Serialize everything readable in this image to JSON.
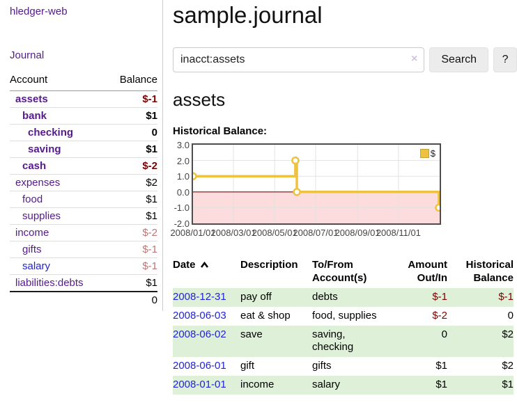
{
  "app": {
    "title": "hledger-web"
  },
  "sidebar": {
    "journal_label": "Journal",
    "accounts": {
      "header_account": "Account",
      "header_balance": "Balance",
      "rows": [
        {
          "name": "assets",
          "balance": "$-1",
          "level": 1,
          "bold": true,
          "balance_style": "neg-strong",
          "link": "purple"
        },
        {
          "name": "bank",
          "balance": "$1",
          "level": 2,
          "bold": true,
          "balance_style": "normal",
          "link": "purple"
        },
        {
          "name": "checking",
          "balance": "0",
          "level": 3,
          "bold": true,
          "balance_style": "normal",
          "link": "purple"
        },
        {
          "name": "saving",
          "balance": "$1",
          "level": 3,
          "bold": true,
          "balance_style": "normal",
          "link": "purple"
        },
        {
          "name": "cash",
          "balance": "$-2",
          "level": 2,
          "bold": true,
          "balance_style": "neg-strong",
          "link": "purple"
        },
        {
          "name": "expenses",
          "balance": "$2",
          "level": 1,
          "bold": false,
          "balance_style": "normal",
          "link": "purple"
        },
        {
          "name": "food",
          "balance": "$1",
          "level": 2,
          "bold": false,
          "balance_style": "normal",
          "link": "purple"
        },
        {
          "name": "supplies",
          "balance": "$1",
          "level": 2,
          "bold": false,
          "balance_style": "normal",
          "link": "purple"
        },
        {
          "name": "income",
          "balance": "$-2",
          "level": 1,
          "bold": false,
          "balance_style": "neg-soft",
          "link": "purple"
        },
        {
          "name": "gifts",
          "balance": "$-1",
          "level": 2,
          "bold": false,
          "balance_style": "neg-soft",
          "link": "purple"
        },
        {
          "name": "salary",
          "balance": "$-1",
          "level": 2,
          "bold": false,
          "balance_style": "neg-soft",
          "link": "blue"
        },
        {
          "name": "liabilities:debts",
          "balance": "$1",
          "level": 1,
          "bold": false,
          "balance_style": "normal",
          "link": "purple"
        }
      ],
      "total": "0"
    }
  },
  "main": {
    "title": "sample.journal",
    "search": {
      "value": "inacct:assets",
      "clear_icon": "×",
      "button_label": "Search",
      "help_label": "?"
    },
    "account_heading": "assets",
    "chart_heading": "Historical Balance:"
  },
  "chart_data": {
    "type": "line",
    "title": "Historical Balance:",
    "ylim": [
      -2,
      3
    ],
    "yticks": [
      {
        "v": 3,
        "label": "3.0"
      },
      {
        "v": 2,
        "label": "2.0"
      },
      {
        "v": 1,
        "label": "1.0"
      },
      {
        "v": 0,
        "label": "0.0"
      },
      {
        "v": -1,
        "label": "-1.0"
      },
      {
        "v": -2,
        "label": "-2.0"
      }
    ],
    "xticks": [
      {
        "pos": 0.0,
        "label": "2008/01/01"
      },
      {
        "pos": 0.164,
        "label": "2008/03/01"
      },
      {
        "pos": 0.331,
        "label": "2008/05/01"
      },
      {
        "pos": 0.497,
        "label": "2008/07/01"
      },
      {
        "pos": 0.667,
        "label": "2008/09/01"
      },
      {
        "pos": 0.833,
        "label": "2008/11/01"
      }
    ],
    "series": [
      {
        "name": "$",
        "color": "#edc240",
        "step": true,
        "points": [
          {
            "x": 0.0,
            "y": 1
          },
          {
            "x": 0.415,
            "y": 1
          },
          {
            "x": 0.415,
            "y": 2
          },
          {
            "x": 0.421,
            "y": 2
          },
          {
            "x": 0.421,
            "y": 0
          },
          {
            "x": 0.997,
            "y": 0
          },
          {
            "x": 0.997,
            "y": -1
          }
        ],
        "markers": [
          {
            "x": 0.0,
            "y": 1
          },
          {
            "x": 0.415,
            "y": 2
          },
          {
            "x": 0.421,
            "y": 0
          },
          {
            "x": 0.997,
            "y": -1
          }
        ]
      }
    ],
    "grid": true,
    "legend_position": "top-right",
    "negative_region": {
      "from": -2,
      "to": 0,
      "color": "#fcdcdc"
    },
    "zero_line_color": "#8b0000"
  },
  "register": {
    "headers": {
      "date": "Date",
      "sort_icon": "chevron-up",
      "description": "Description",
      "accounts": "To/From Account(s)",
      "amount": "Amount Out/In",
      "balance": "Historical Balance"
    },
    "rows": [
      {
        "date": "2008-12-31",
        "description": "pay off",
        "accounts": "debts",
        "amount": "$-1",
        "amount_negative": true,
        "balance": "$-1",
        "balance_negative": true
      },
      {
        "date": "2008-06-03",
        "description": "eat & shop",
        "accounts": "food, supplies",
        "amount": "$-2",
        "amount_negative": true,
        "balance": "0",
        "balance_negative": false
      },
      {
        "date": "2008-06-02",
        "description": "save",
        "accounts": "saving, checking",
        "amount": "0",
        "amount_negative": false,
        "balance": "$2",
        "balance_negative": false
      },
      {
        "date": "2008-06-01",
        "description": "gift",
        "accounts": "gifts",
        "amount": "$1",
        "amount_negative": false,
        "balance": "$2",
        "balance_negative": false
      },
      {
        "date": "2008-01-01",
        "description": "income",
        "accounts": "salary",
        "amount": "$1",
        "amount_negative": false,
        "balance": "$1",
        "balance_negative": false
      }
    ]
  },
  "colors": {
    "accent_purple": "#551a8b",
    "link_blue": "#2222dd",
    "negative_strong": "#800000",
    "negative_soft": "#bd7575",
    "row_stripe_green": "#def0d8",
    "chart_line": "#edc240",
    "chart_negative_fill": "#fcdcdc",
    "chart_zero_line": "#8b0000",
    "chart_border": "#4d4d4d"
  }
}
